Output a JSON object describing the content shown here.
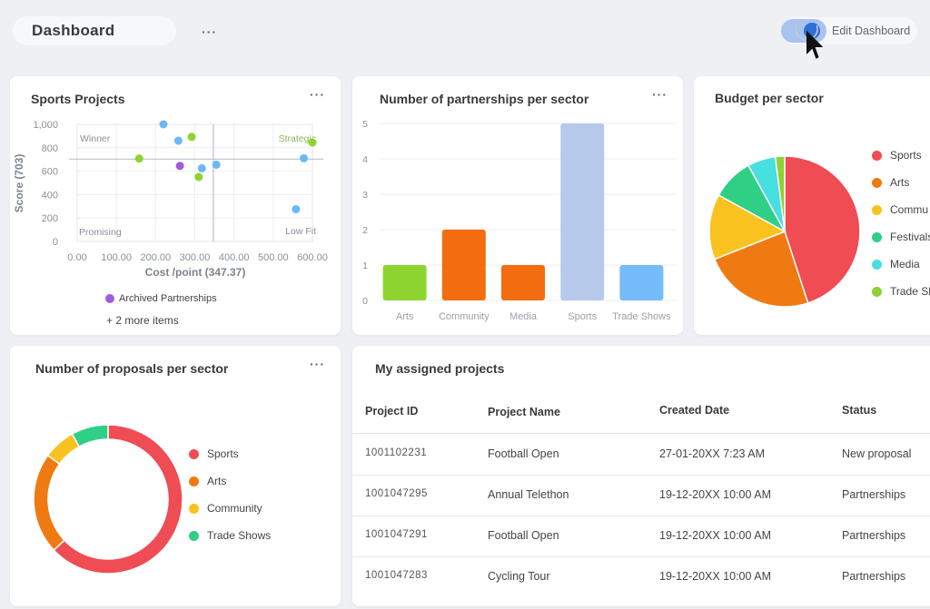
{
  "header": {
    "title": "Dashboard",
    "more_label": "···",
    "edit_label": "Edit Dashboard",
    "toggle_on": true
  },
  "colors": {
    "sports": "#ef4c53",
    "arts": "#f07a12",
    "community": "#f9c21e",
    "festivals": "#2fcf86",
    "media": "#47dfe0",
    "trade_shows": "#8bd232",
    "bar_green": "#8dd52e",
    "bar_orange": "#f46c10",
    "bar_lightblue": "#b7c9ea",
    "bar_blue": "#74bdfa",
    "toggle": "#2f6fd6"
  },
  "sports_projects": {
    "title": "Sports Projects",
    "more_label": "···",
    "legend_archived": "Archived Partnerships",
    "more_items": "+ 2 more items",
    "chart_data": {
      "type": "scatter",
      "title": "Sports Projects",
      "xlabel": "Cost /point (347.37)",
      "ylabel": "Score (703)",
      "xlim": [
        0,
        600
      ],
      "ylim": [
        0,
        1000
      ],
      "xticks": [
        "0.00",
        "100.00",
        "200.00",
        "300.00",
        "400.00",
        "500.00",
        "600.00"
      ],
      "yticks": [
        "0",
        "200",
        "400",
        "600",
        "800",
        "1,000"
      ],
      "crosshair": {
        "x": 347.37,
        "y": 703
      },
      "quadrants": {
        "top_left": "Winner",
        "top_right": "Strategic",
        "bottom_left": "Promising",
        "bottom_right": "Low Fit"
      },
      "points": [
        {
          "x": 220,
          "y": 1000,
          "color": "#6ab8f7"
        },
        {
          "x": 258,
          "y": 860,
          "color": "#6ab8f7"
        },
        {
          "x": 292,
          "y": 893,
          "color": "#8dd52e"
        },
        {
          "x": 158,
          "y": 708,
          "color": "#8dd52e"
        },
        {
          "x": 262,
          "y": 645,
          "color": "#a259e0"
        },
        {
          "x": 318,
          "y": 625,
          "color": "#6ab8f7"
        },
        {
          "x": 355,
          "y": 655,
          "color": "#6ab8f7"
        },
        {
          "x": 310,
          "y": 550,
          "color": "#8dd52e"
        },
        {
          "x": 578,
          "y": 710,
          "color": "#6ab8f7"
        },
        {
          "x": 600,
          "y": 845,
          "color": "#8dd52e"
        },
        {
          "x": 558,
          "y": 275,
          "color": "#6ab8f7"
        }
      ]
    }
  },
  "partnerships": {
    "title": "Number of partnerships per sector",
    "more_label": "···",
    "chart_data": {
      "type": "bar",
      "title": "Number of partnerships per sector",
      "categories": [
        "Arts",
        "Community",
        "Media",
        "Sports",
        "Trade Shows"
      ],
      "values": [
        1,
        2,
        1,
        5,
        1
      ],
      "colors": [
        "#8dd52e",
        "#f46c10",
        "#f46c10",
        "#b7c9ea",
        "#74bdfa"
      ],
      "yticks": [
        "0",
        "1",
        "2",
        "3",
        "4",
        "5"
      ],
      "ylim": [
        0,
        5
      ]
    }
  },
  "budget": {
    "title": "Budget per sector",
    "chart_data": {
      "type": "pie",
      "title": "Budget per sector",
      "slices": [
        {
          "label": "Sports",
          "value": 45,
          "color": "#ef4c53"
        },
        {
          "label": "Arts",
          "value": 24,
          "color": "#f07a12"
        },
        {
          "label": "Community",
          "value": 14,
          "color": "#f9c21e"
        },
        {
          "label": "Festivals",
          "value": 9,
          "color": "#2fcf86"
        },
        {
          "label": "Media",
          "value": 6,
          "color": "#47dfe0"
        },
        {
          "label": "Trade Shows",
          "value": 2,
          "color": "#8bd232"
        }
      ]
    },
    "legend_display": [
      "Sports",
      "Arts",
      "Commu",
      "Festivals",
      "Media",
      "Trade Sh"
    ]
  },
  "proposals": {
    "title": "Number of proposals per sector",
    "more_label": "···",
    "chart_data": {
      "type": "pie",
      "title": "Number of proposals per sector",
      "slices": [
        {
          "label": "Sports",
          "value": 63,
          "color": "#ef4c53"
        },
        {
          "label": "Arts",
          "value": 22,
          "color": "#f07a12"
        },
        {
          "label": "Community",
          "value": 7,
          "color": "#f9c21e"
        },
        {
          "label": "Trade Shows",
          "value": 8,
          "color": "#2fcf86"
        }
      ]
    }
  },
  "assigned": {
    "title": "My assigned projects",
    "columns": [
      "Project ID",
      "Project Name",
      "Created Date",
      "Status"
    ],
    "rows": [
      {
        "id": "1001102231",
        "name": "Football Open",
        "date": "27-01-20XX 7:23 AM",
        "status": "New proposal"
      },
      {
        "id": "1001047295",
        "name": "Annual Telethon",
        "date": "19-12-20XX 10:00 AM",
        "status": "Partnerships"
      },
      {
        "id": "1001047291",
        "name": "Football Open",
        "date": "19-12-20XX 10:00 AM",
        "status": "Partnerships"
      },
      {
        "id": "1001047283",
        "name": "Cycling Tour",
        "date": "19-12-20XX 10:00 AM",
        "status": "Partnerships"
      }
    ]
  }
}
